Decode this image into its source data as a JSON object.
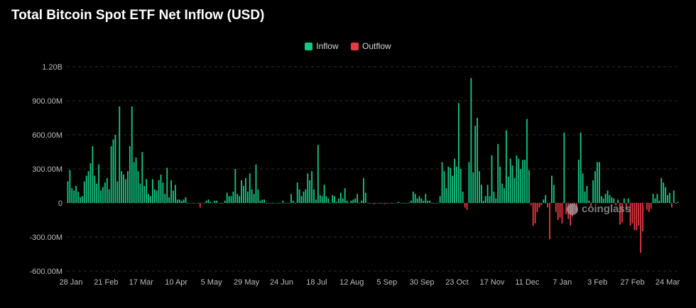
{
  "header": {
    "title": "Total Bitcoin Spot ETF Net Inflow (USD)"
  },
  "legend": {
    "inflow": "Inflow",
    "outflow": "Outflow"
  },
  "colors": {
    "inflow": "#16c784",
    "outflow": "#ea3943",
    "grid": "#2e2e2e",
    "background": "#000000"
  },
  "watermark": {
    "text": "coinglass"
  },
  "chart_data": {
    "type": "bar",
    "title": "Total Bitcoin Spot ETF Net Inflow (USD)",
    "xlabel": "",
    "ylabel": "",
    "ylim": [
      -600000000,
      1200000000
    ],
    "y_ticks": [
      {
        "value": 1200000000,
        "label": "1.20B"
      },
      {
        "value": 900000000,
        "label": "900.00M"
      },
      {
        "value": 600000000,
        "label": "600.00M"
      },
      {
        "value": 300000000,
        "label": "300.00M"
      },
      {
        "value": 0,
        "label": "0"
      },
      {
        "value": -300000000,
        "label": "-300.00M"
      },
      {
        "value": -600000000,
        "label": "-600.00M"
      }
    ],
    "x_tick_labels": [
      "28 Jan",
      "21 Feb",
      "17 Mar",
      "10 Apr",
      "5 May",
      "29 May",
      "24 Jun",
      "18 Jul",
      "12 Aug",
      "5 Sep",
      "30 Sep",
      "23 Oct",
      "17 Nov",
      "11 Dec",
      "7 Jan",
      "3 Feb",
      "27 Feb",
      "24 Mar"
    ],
    "series_names": [
      "Inflow",
      "Outflow"
    ],
    "values_musd": [
      190,
      290,
      130,
      110,
      150,
      100,
      50,
      60,
      190,
      240,
      280,
      350,
      500,
      240,
      170,
      340,
      110,
      140,
      180,
      220,
      120,
      500,
      560,
      600,
      190,
      850,
      280,
      250,
      210,
      280,
      500,
      850,
      360,
      400,
      280,
      170,
      450,
      150,
      210,
      80,
      60,
      210,
      120,
      110,
      200,
      250,
      180,
      80,
      310,
      50,
      200,
      110,
      160,
      30,
      30,
      20,
      30,
      50,
      0,
      0,
      0,
      0,
      0,
      0,
      -40,
      0,
      0,
      20,
      30,
      10,
      0,
      20,
      20,
      0,
      0,
      0,
      20,
      90,
      60,
      60,
      100,
      300,
      80,
      60,
      200,
      150,
      220,
      100,
      260,
      120,
      80,
      340,
      120,
      20,
      30,
      30,
      0,
      0,
      0,
      0,
      0,
      0,
      0,
      0,
      20,
      0,
      0,
      0,
      80,
      20,
      0,
      180,
      120,
      60,
      100,
      120,
      260,
      200,
      280,
      120,
      30,
      510,
      70,
      60,
      160,
      60,
      40,
      0,
      70,
      60,
      10,
      40,
      90,
      40,
      130,
      20,
      0,
      20,
      30,
      40,
      80,
      0,
      20,
      220,
      90,
      0,
      0,
      0,
      -10,
      0,
      0,
      0,
      0,
      -10,
      0,
      0,
      0,
      0,
      0,
      0,
      10,
      0,
      0,
      0,
      0,
      0,
      20,
      100,
      80,
      40,
      60,
      40,
      20,
      80,
      20,
      20,
      0,
      0,
      0,
      0,
      60,
      360,
      280,
      130,
      320,
      310,
      240,
      390,
      320,
      880,
      300,
      100,
      -40,
      -60,
      360,
      1100,
      270,
      680,
      750,
      280,
      160,
      20,
      60,
      160,
      60,
      420,
      100,
      40,
      520,
      320,
      170,
      130,
      640,
      230,
      390,
      330,
      220,
      420,
      390,
      300,
      380,
      380,
      740,
      290,
      -20,
      -200,
      -180,
      -80,
      -40,
      -20,
      30,
      70,
      -40,
      -320,
      240,
      160,
      -80,
      -150,
      -130,
      -180,
      620,
      -100,
      -140,
      -200,
      -120,
      -20,
      -80,
      380,
      620,
      260,
      100,
      150,
      20,
      -30,
      200,
      280,
      360,
      360,
      60,
      40,
      80,
      110,
      70,
      50,
      40,
      -20,
      30,
      -190,
      -170,
      40,
      -60,
      40,
      -200,
      -180,
      -240,
      -240,
      -200,
      -440,
      -250,
      0,
      -60,
      -80,
      -50,
      80,
      40,
      80,
      20,
      220,
      180,
      140,
      70,
      90,
      -40,
      110,
      0,
      10
    ]
  }
}
